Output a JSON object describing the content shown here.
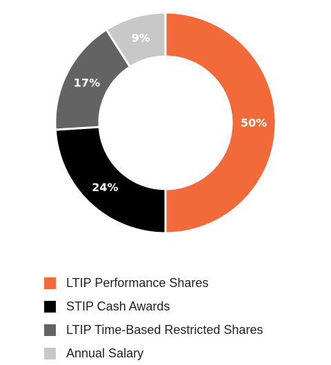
{
  "chart_data": {
    "type": "pie",
    "donut": true,
    "categories": [
      "LTIP Performance Shares",
      "STIP Cash Awards",
      "LTIP Time-Based Restricted Shares",
      "Annual Salary"
    ],
    "values": [
      50,
      24,
      17,
      9
    ],
    "labels": [
      "50%",
      "24%",
      "17%",
      "9%"
    ],
    "colors": [
      "#f26a3a",
      "#000000",
      "#636363",
      "#c8c8c8"
    ],
    "start_angle_deg": 0,
    "direction": "clockwise",
    "legend_position": "bottom"
  }
}
